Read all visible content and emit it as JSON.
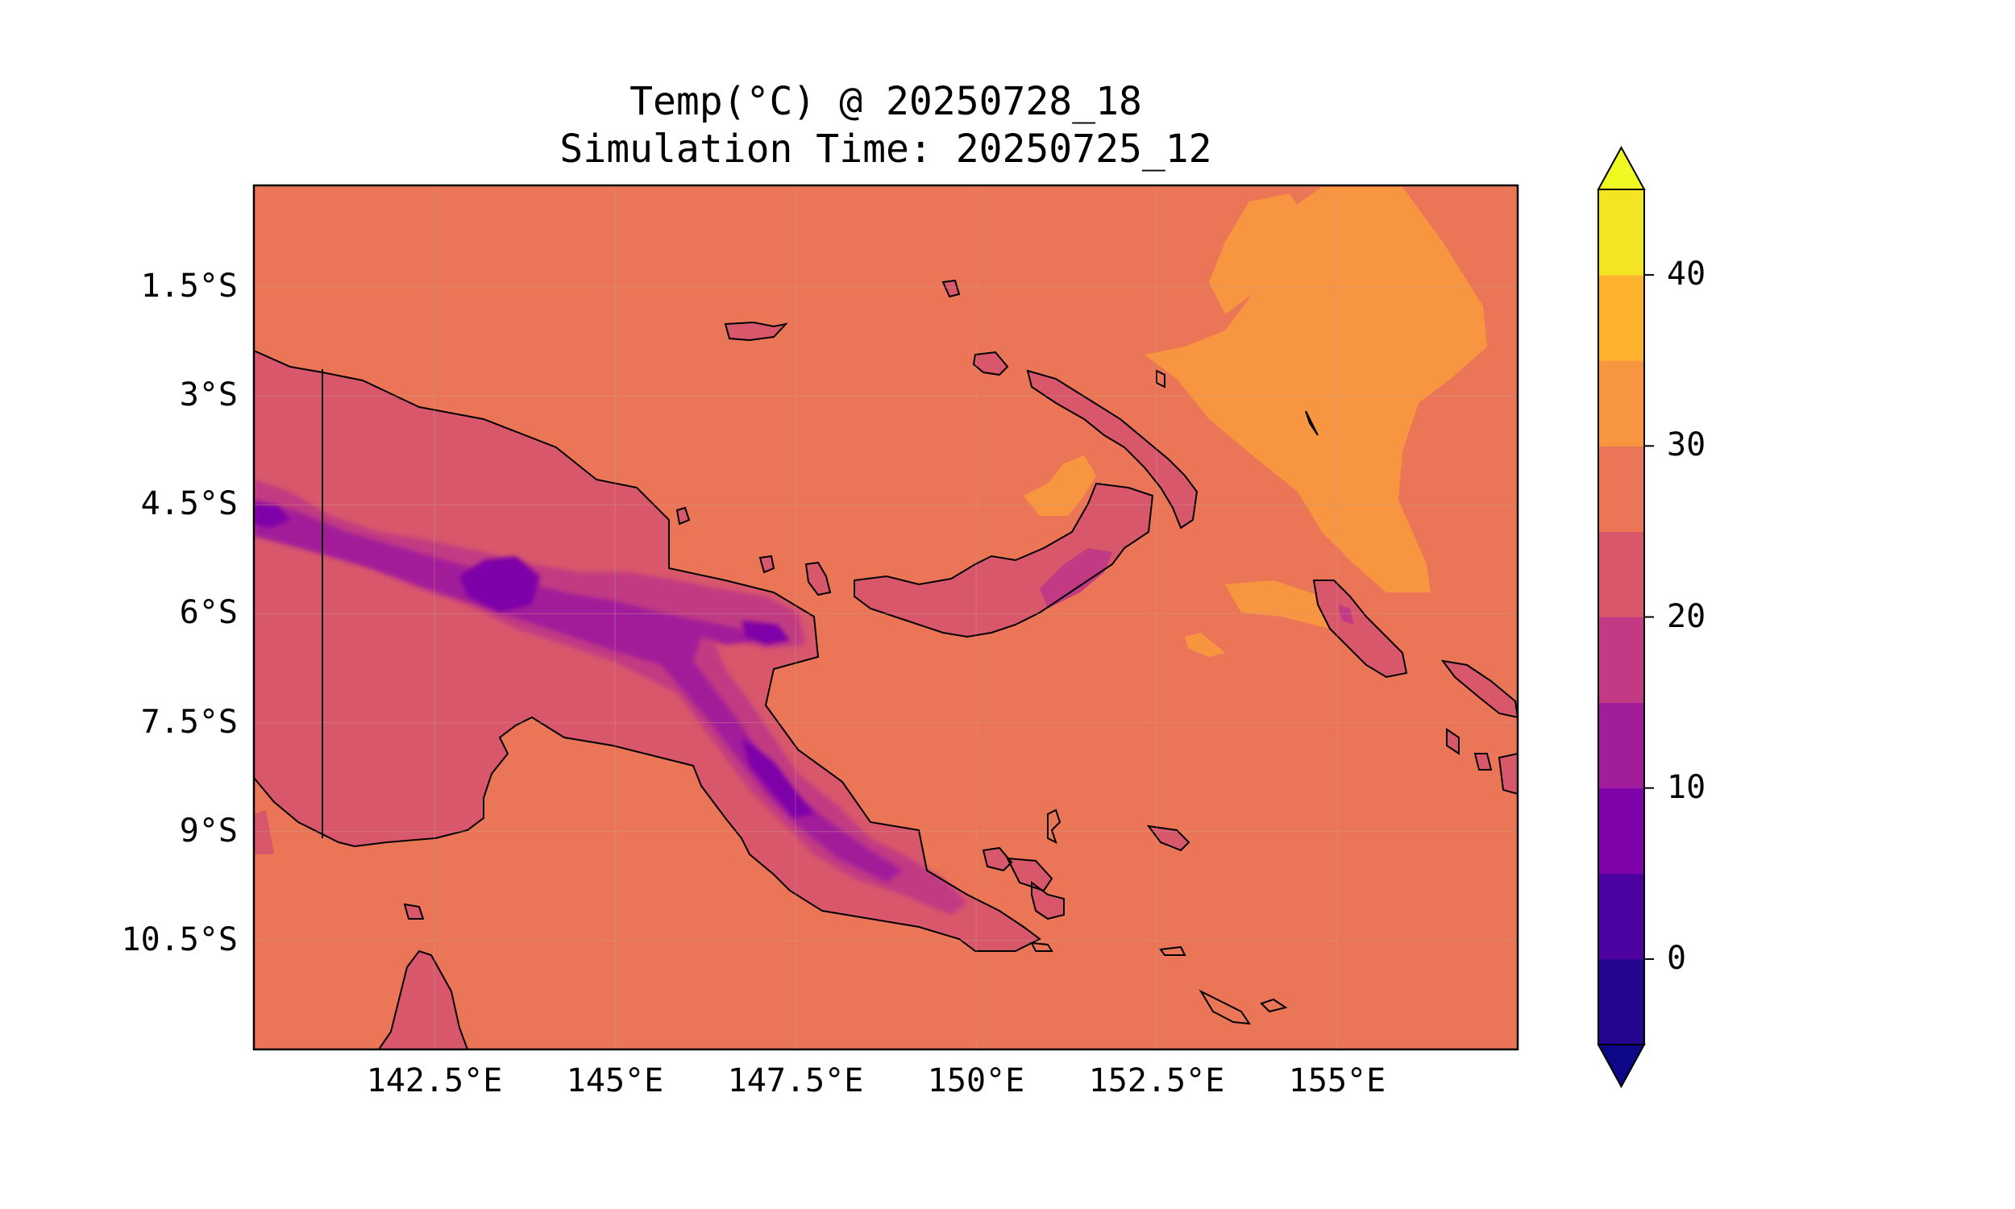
{
  "title": {
    "line1": "Temp(°C) @ 20250728_18",
    "line2": "Simulation Time: 20250725_12"
  },
  "map": {
    "type": "filled-contour",
    "region": "Papua New Guinea",
    "lon_range": [
      140.0,
      157.5
    ],
    "lat_range": [
      -12.0,
      -0.1
    ],
    "lat_ticks": [
      {
        "value": -1.5,
        "label": "1.5°S"
      },
      {
        "value": -3.0,
        "label": "3°S"
      },
      {
        "value": -4.5,
        "label": "4.5°S"
      },
      {
        "value": -6.0,
        "label": "6°S"
      },
      {
        "value": -7.5,
        "label": "7.5°S"
      },
      {
        "value": -9.0,
        "label": "9°S"
      },
      {
        "value": -10.5,
        "label": "10.5°S"
      }
    ],
    "lon_ticks": [
      {
        "value": 142.5,
        "label": "142.5°E"
      },
      {
        "value": 145.0,
        "label": "145°E"
      },
      {
        "value": 147.5,
        "label": "147.5°E"
      },
      {
        "value": 150.0,
        "label": "150°E"
      },
      {
        "value": 152.5,
        "label": "152.5°E"
      },
      {
        "value": 155.0,
        "label": "155°E"
      }
    ],
    "grid": true,
    "background_color": "#eb7557"
  },
  "colorbar": {
    "min": -5,
    "max": 45,
    "extend": "both",
    "ticks": [
      {
        "value": 0,
        "label": "0"
      },
      {
        "value": 10,
        "label": "10"
      },
      {
        "value": 20,
        "label": "20"
      },
      {
        "value": 30,
        "label": "30"
      },
      {
        "value": 40,
        "label": "40"
      }
    ],
    "levels": [
      {
        "from": -5,
        "to": 0,
        "color": "#24068f"
      },
      {
        "from": 0,
        "to": 5,
        "color": "#4c02a1"
      },
      {
        "from": 5,
        "to": 10,
        "color": "#7e03a8"
      },
      {
        "from": 10,
        "to": 15,
        "color": "#a21d9a"
      },
      {
        "from": 15,
        "to": 20,
        "color": "#c13a83"
      },
      {
        "from": 20,
        "to": 25,
        "color": "#d8576b"
      },
      {
        "from": 25,
        "to": 30,
        "color": "#eb7557"
      },
      {
        "from": 30,
        "to": 35,
        "color": "#f89540"
      },
      {
        "from": 35,
        "to": 40,
        "color": "#fdb32f"
      },
      {
        "from": 40,
        "to": 45,
        "color": "#f3e524"
      }
    ],
    "under_color": "#0d0887",
    "over_color": "#f0f921"
  }
}
